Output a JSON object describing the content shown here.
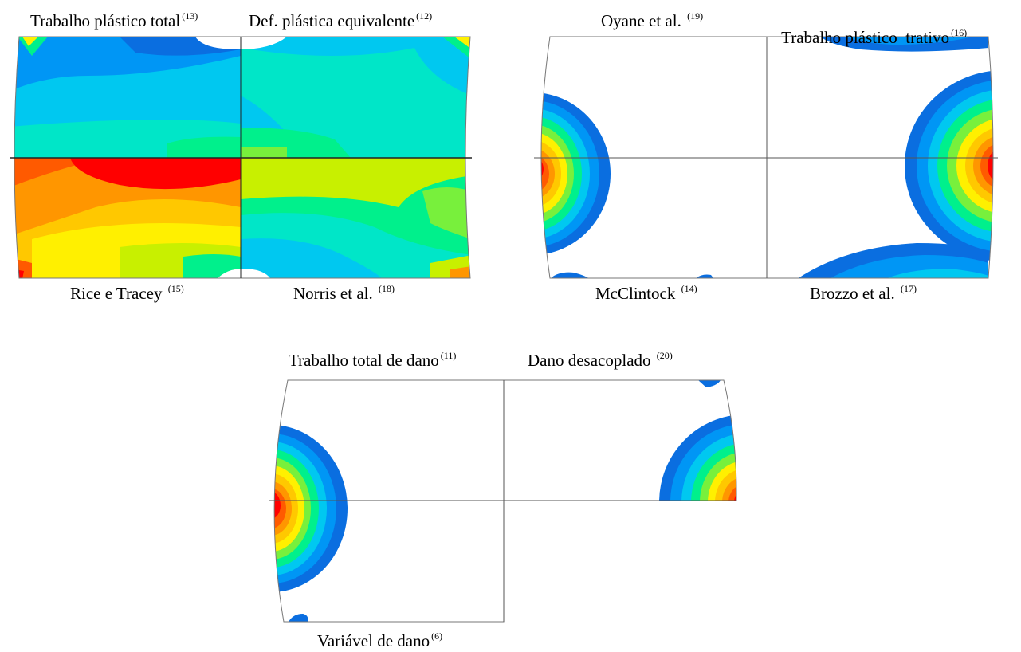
{
  "panels": [
    {
      "id": "A",
      "quadrants": [
        {
          "position": "top-left",
          "criterion": "Trabalho plástico total",
          "ref": "(13)"
        },
        {
          "position": "top-right",
          "criterion": "Def. plástica equivalente",
          "ref": "(12)"
        },
        {
          "position": "bottom-left",
          "criterion": "Rice e Tracey",
          "ref": "(15)"
        },
        {
          "position": "bottom-right",
          "criterion": "Norris et al.",
          "ref": "(18)"
        }
      ]
    },
    {
      "id": "B",
      "quadrants": [
        {
          "position": "top-left",
          "criterion": "Oyane et al.",
          "ref": "(19)"
        },
        {
          "position": "top-right",
          "criterion": "Trabalho plástico  trativo",
          "ref": "(16)"
        },
        {
          "position": "bottom-left",
          "criterion": "McClintock",
          "ref": "(14)"
        },
        {
          "position": "bottom-right",
          "criterion": "Brozzo et al.",
          "ref": "(17)"
        }
      ]
    },
    {
      "id": "C",
      "quadrants": [
        {
          "position": "top-left",
          "criterion": "Trabalho total de dano",
          "ref": "(11)"
        },
        {
          "position": "top-right",
          "criterion": "Dano desacoplado",
          "ref": "(20)"
        },
        {
          "position": "bottom-left",
          "criterion": "Variável de dano",
          "ref": "(6)"
        }
      ]
    }
  ],
  "colors": {
    "c1": "#0a6ee0",
    "c2": "#0096f5",
    "c3": "#00c8f0",
    "c4": "#00e6c8",
    "c5": "#00f08c",
    "c6": "#78f03c",
    "c7": "#c8f000",
    "c8": "#fff000",
    "c9": "#ffc800",
    "c10": "#ff9600",
    "c11": "#ff5a00",
    "c12": "#ff0000"
  }
}
